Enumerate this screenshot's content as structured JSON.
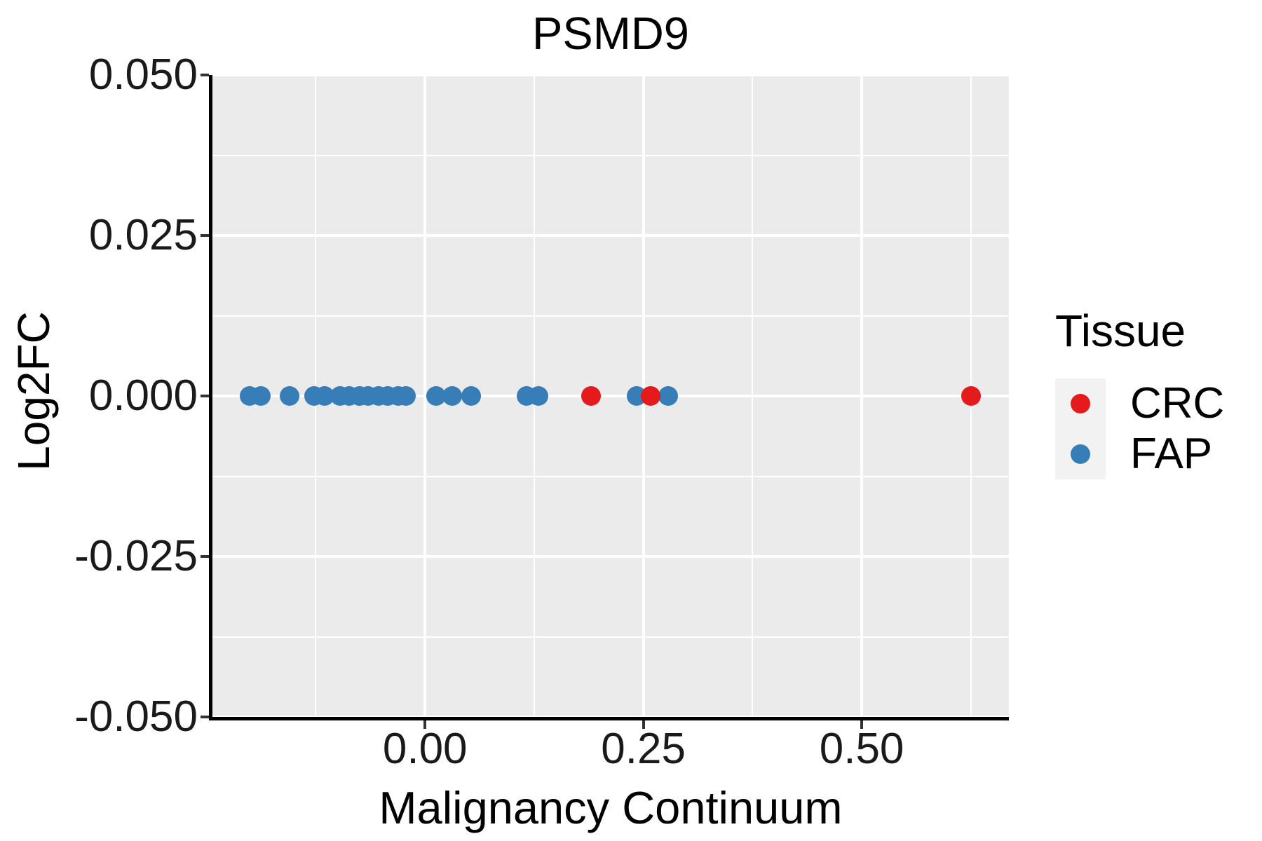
{
  "chart_data": {
    "type": "scatter",
    "title": "PSMD9",
    "xlabel": "Malignancy Continuum",
    "ylabel": "Log2FC",
    "xlim": [
      -0.2434,
      0.6685
    ],
    "ylim": [
      -0.05,
      0.05
    ],
    "grid": true,
    "panel_bg": "#EBEBEB",
    "grid_color": "#FFFFFF",
    "x_ticks": {
      "values": [
        0.0,
        0.25,
        0.5
      ],
      "labels": [
        "0.00",
        "0.25",
        "0.50"
      ]
    },
    "y_ticks": {
      "values": [
        0.05,
        0.025,
        0.0,
        -0.025,
        -0.05
      ],
      "labels": [
        "0.050",
        "0.025",
        "0.000",
        "-0.025",
        "-0.050"
      ]
    },
    "x_minor_gridlines": [
      -0.125,
      0.125,
      0.375,
      0.625
    ],
    "y_minor_gridlines": [
      0.0375,
      0.0125,
      -0.0125,
      -0.0375
    ],
    "legend": {
      "title": "Tissue",
      "position": "right"
    },
    "series": [
      {
        "name": "CRC",
        "color": "#E41A1C",
        "points": [
          {
            "x": 0.19,
            "y": 0.0
          },
          {
            "x": 0.258,
            "y": 0.0
          },
          {
            "x": 0.625,
            "y": 0.0
          }
        ]
      },
      {
        "name": "FAP",
        "color": "#377EB8",
        "points": [
          {
            "x": -0.201,
            "y": 0.0
          },
          {
            "x": -0.188,
            "y": 0.0
          },
          {
            "x": -0.155,
            "y": 0.0
          },
          {
            "x": -0.127,
            "y": 0.0
          },
          {
            "x": -0.115,
            "y": 0.0
          },
          {
            "x": -0.097,
            "y": 0.0
          },
          {
            "x": -0.087,
            "y": 0.0
          },
          {
            "x": -0.075,
            "y": 0.0
          },
          {
            "x": -0.065,
            "y": 0.0
          },
          {
            "x": -0.053,
            "y": 0.0
          },
          {
            "x": -0.043,
            "y": 0.0
          },
          {
            "x": -0.031,
            "y": 0.0
          },
          {
            "x": -0.022,
            "y": 0.0
          },
          {
            "x": 0.013,
            "y": 0.0
          },
          {
            "x": 0.031,
            "y": 0.0
          },
          {
            "x": 0.053,
            "y": 0.0
          },
          {
            "x": 0.116,
            "y": 0.0
          },
          {
            "x": 0.13,
            "y": 0.0
          },
          {
            "x": 0.242,
            "y": 0.0
          },
          {
            "x": 0.278,
            "y": 0.0
          }
        ]
      }
    ]
  }
}
